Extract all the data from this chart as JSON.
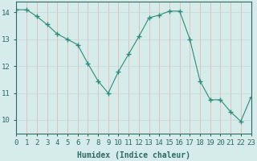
{
  "x": [
    0,
    1,
    2,
    3,
    4,
    5,
    6,
    7,
    8,
    9,
    10,
    11,
    12,
    13,
    14,
    15,
    16,
    17,
    18,
    19,
    20,
    21,
    22,
    23
  ],
  "y": [
    14.1,
    14.1,
    13.85,
    13.55,
    13.2,
    13.0,
    12.8,
    12.1,
    11.45,
    11.0,
    11.8,
    12.45,
    13.1,
    13.8,
    13.9,
    14.05,
    14.05,
    13.0,
    11.45,
    10.75,
    10.75,
    10.3,
    9.95,
    10.85
  ],
  "line_color": "#2e8b7a",
  "marker": "+",
  "marker_size": 4,
  "bg_color": "#d5ecea",
  "grid_color_v": "#e8b0b0",
  "grid_color_h": "#c8d8d8",
  "tick_color": "#2e6b60",
  "xlabel": "Humidex (Indice chaleur)",
  "xlim": [
    0,
    23
  ],
  "ylim": [
    9.5,
    14.4
  ],
  "yticks": [
    10,
    11,
    12,
    13,
    14
  ],
  "xticks": [
    0,
    1,
    2,
    3,
    4,
    5,
    6,
    7,
    8,
    9,
    10,
    11,
    12,
    13,
    14,
    15,
    16,
    17,
    18,
    19,
    20,
    21,
    22,
    23
  ],
  "label_fontsize": 7,
  "tick_fontsize": 6.5
}
